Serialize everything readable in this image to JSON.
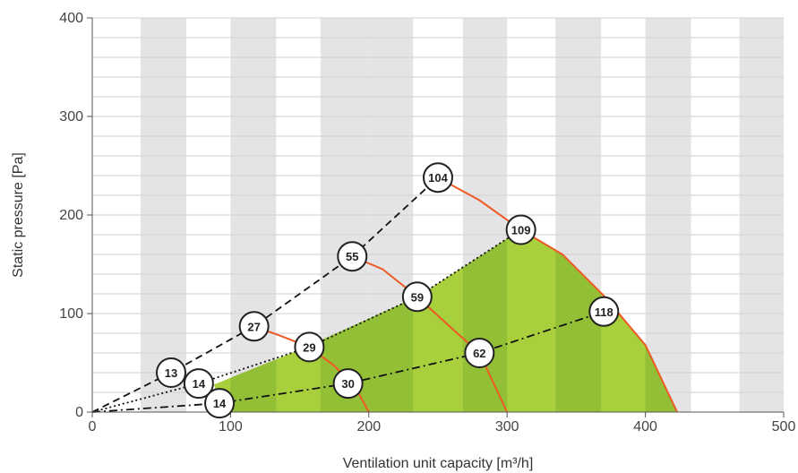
{
  "chart_data": {
    "type": "line",
    "xlabel": "Ventilation unit capacity [m³/h]",
    "ylabel": "Static pressure [Pa]",
    "xlim": [
      0,
      500
    ],
    "ylim": [
      0,
      400
    ],
    "xticks": [
      "0",
      "100",
      "200",
      "300",
      "400",
      "500"
    ],
    "yticks": [
      "0",
      "100",
      "200",
      "300",
      "400"
    ],
    "background_bands": [
      {
        "x0": 35,
        "x1": 68
      },
      {
        "x0": 100,
        "x1": 133
      },
      {
        "x0": 165,
        "x1": 200
      },
      {
        "x0": 200,
        "x1": 232
      },
      {
        "x0": 268,
        "x1": 300
      },
      {
        "x0": 335,
        "x1": 368
      },
      {
        "x0": 400,
        "x1": 433
      },
      {
        "x0": 468,
        "x1": 500
      }
    ],
    "operating_area": {
      "upper_boundary": [
        [
          88,
          28
        ],
        [
          148,
          62
        ],
        [
          235,
          117
        ],
        [
          310,
          185
        ]
      ],
      "outer_curve": [
        [
          310,
          185
        ],
        [
          340,
          160
        ],
        [
          370,
          118
        ],
        [
          400,
          68
        ],
        [
          423,
          0
        ]
      ],
      "lower_boundary": [
        [
          423,
          0
        ],
        [
          95,
          0
        ],
        [
          88,
          28
        ]
      ],
      "colors": [
        "#a8cf3c",
        "#93bf36"
      ]
    },
    "system_curves": [
      {
        "style": "dashed",
        "points": [
          [
            0,
            0
          ],
          [
            57,
            40
          ],
          [
            117,
            87
          ],
          [
            188,
            158
          ],
          [
            250,
            238
          ]
        ]
      },
      {
        "style": "dotted",
        "points": [
          [
            0,
            0
          ],
          [
            77,
            29
          ],
          [
            157,
            66
          ],
          [
            235,
            117
          ],
          [
            310,
            185
          ]
        ]
      },
      {
        "style": "dashdot",
        "points": [
          [
            0,
            0
          ],
          [
            92,
            9
          ],
          [
            185,
            29
          ],
          [
            280,
            60
          ],
          [
            370,
            102
          ]
        ]
      }
    ],
    "fan_curves": [
      {
        "color": "#ee5a24",
        "points": [
          [
            117,
            87
          ],
          [
            135,
            78
          ],
          [
            157,
            66
          ],
          [
            175,
            47
          ],
          [
            190,
            26
          ],
          [
            200,
            0
          ]
        ]
      },
      {
        "color": "#ee5a24",
        "points": [
          [
            188,
            158
          ],
          [
            210,
            145
          ],
          [
            235,
            117
          ],
          [
            260,
            85
          ],
          [
            280,
            60
          ],
          [
            300,
            0
          ]
        ]
      },
      {
        "color": "#ee5a24",
        "points": [
          [
            250,
            238
          ],
          [
            280,
            215
          ],
          [
            310,
            185
          ],
          [
            340,
            160
          ],
          [
            370,
            118
          ],
          [
            400,
            68
          ],
          [
            423,
            0
          ]
        ]
      }
    ],
    "markers": [
      {
        "label": "13",
        "x": 57,
        "y": 40
      },
      {
        "label": "14",
        "x": 77,
        "y": 29
      },
      {
        "label": "14",
        "x": 92,
        "y": 9
      },
      {
        "label": "27",
        "x": 117,
        "y": 87
      },
      {
        "label": "29",
        "x": 157,
        "y": 66
      },
      {
        "label": "30",
        "x": 185,
        "y": 29
      },
      {
        "label": "55",
        "x": 188,
        "y": 158
      },
      {
        "label": "59",
        "x": 235,
        "y": 117
      },
      {
        "label": "62",
        "x": 280,
        "y": 60
      },
      {
        "label": "104",
        "x": 250,
        "y": 238
      },
      {
        "label": "109",
        "x": 310,
        "y": 185
      },
      {
        "label": "118",
        "x": 370,
        "y": 102
      }
    ],
    "grid": true
  }
}
